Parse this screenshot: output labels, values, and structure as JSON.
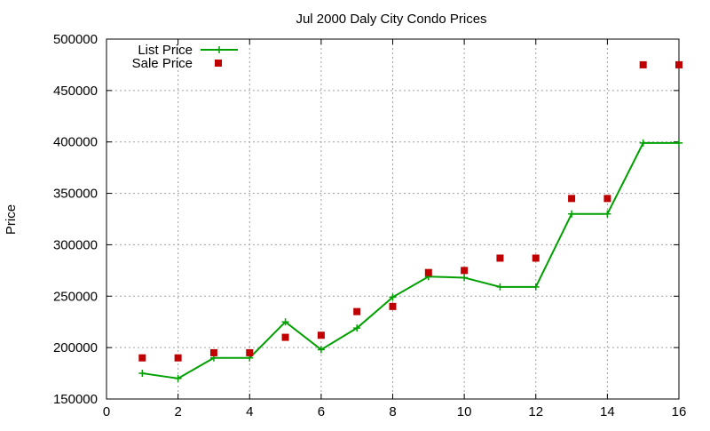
{
  "chart_data": {
    "type": "line",
    "title": "Jul 2000 Daly City Condo Prices",
    "xlabel": "",
    "ylabel": "Price",
    "xlim": [
      0,
      16
    ],
    "ylim": [
      150000,
      500000
    ],
    "x_ticks": [
      "0",
      "2",
      "4",
      "6",
      "8",
      "10",
      "12",
      "14",
      "16"
    ],
    "y_ticks": [
      "150000",
      "200000",
      "250000",
      "300000",
      "350000",
      "400000",
      "450000",
      "500000"
    ],
    "grid": true,
    "legend_position": "top-left",
    "series": [
      {
        "name": "List Price",
        "style": "line-plus",
        "color": "#00a000",
        "x": [
          1,
          2,
          3,
          4,
          5,
          6,
          7,
          8,
          9,
          10,
          11,
          12,
          13,
          14,
          15,
          16
        ],
        "values": [
          175000,
          170000,
          190000,
          190000,
          225000,
          198000,
          219000,
          249000,
          269000,
          268000,
          259000,
          259000,
          330000,
          330000,
          399000,
          399000
        ]
      },
      {
        "name": "Sale Price",
        "style": "squares",
        "color": "#c00000",
        "x": [
          1,
          2,
          3,
          4,
          5,
          6,
          7,
          8,
          9,
          10,
          11,
          12,
          13,
          14,
          15,
          16
        ],
        "values": [
          190000,
          190000,
          195000,
          195000,
          210000,
          212000,
          235000,
          240000,
          273000,
          275000,
          287000,
          287000,
          345000,
          345000,
          475000,
          475000
        ]
      }
    ]
  }
}
